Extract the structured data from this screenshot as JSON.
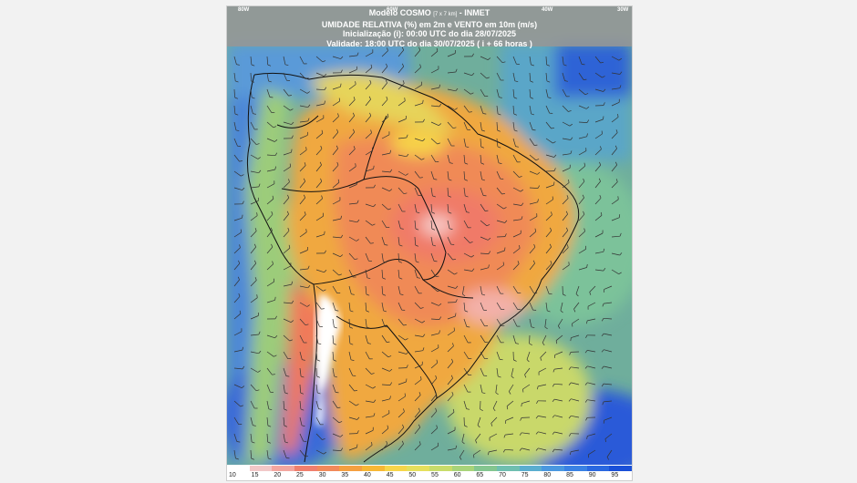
{
  "header": {
    "model_title": "Modelo COSMO",
    "model_res": "[7 x 7 km]",
    "model_source": "- INMET",
    "variable_line": "UMIDADE RELATIVA (%) em 2m e VENTO em 10m (m/s)",
    "init_line": "Inicialização (i): 00:00 UTC do dia 28/07/2025",
    "valid_line": "Validade: 18:00 UTC do dia 30/07/2025 ( i + 66 horas )"
  },
  "longitude_labels": [
    "80W",
    "60W",
    "40W",
    "30W"
  ],
  "legend": {
    "labels": [
      "10",
      "15",
      "20",
      "25",
      "30",
      "35",
      "40",
      "45",
      "50",
      "55",
      "60",
      "65",
      "70",
      "75",
      "80",
      "85",
      "90",
      "95"
    ],
    "colors": [
      "#ffffff",
      "#f2c8c8",
      "#f3a6a0",
      "#f07f6e",
      "#f28a5a",
      "#f5a040",
      "#f7b835",
      "#f7d64a",
      "#e6e05c",
      "#c8dc6a",
      "#a8d47a",
      "#84c690",
      "#6fbfb0",
      "#5aaed0",
      "#4a98e0",
      "#3a82e4",
      "#2a68e0",
      "#1a50d8"
    ]
  }
}
